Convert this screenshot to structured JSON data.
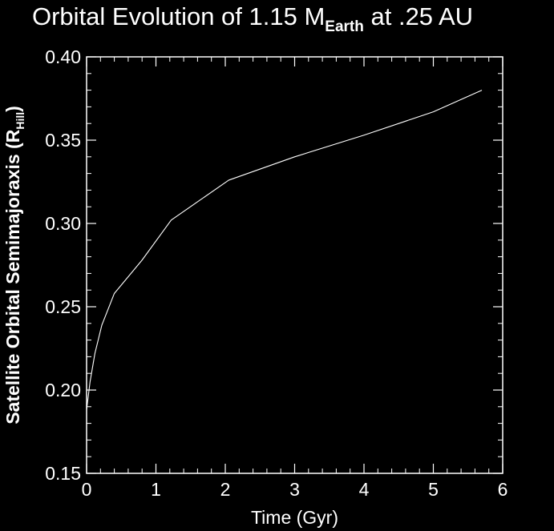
{
  "chart_data": {
    "type": "line",
    "title": {
      "main": "Orbital Evolution of 1.15 M",
      "subscript": "Earth",
      "suffix": " at .25 AU"
    },
    "xlabel": "Time (Gyr)",
    "ylabel": {
      "main": "Satellite Orbital Semimajoraxis (R",
      "subscript": "Hill",
      "suffix": ")"
    },
    "xlim": [
      0,
      6
    ],
    "ylim": [
      0.15,
      0.4
    ],
    "xticks": [
      0,
      1,
      2,
      3,
      4,
      5,
      6
    ],
    "xtick_labels": [
      "0",
      "1",
      "2",
      "3",
      "4",
      "5",
      "6"
    ],
    "yticks": [
      0.15,
      0.2,
      0.25,
      0.3,
      0.35,
      0.4
    ],
    "ytick_labels": [
      "0.15",
      "0.20",
      "0.25",
      "0.30",
      "0.35",
      "0.40"
    ],
    "grid": false,
    "background_color": "#000000",
    "foreground_color": "#ffffff",
    "series": [
      {
        "x": [
          0.0,
          0.05,
          0.12,
          0.22,
          0.4,
          0.8,
          1.22,
          1.6,
          2.05,
          3.0,
          4.0,
          5.0,
          5.7
        ],
        "y": [
          0.188,
          0.205,
          0.222,
          0.239,
          0.258,
          0.278,
          0.302,
          0.313,
          0.326,
          0.34,
          0.353,
          0.367,
          0.38
        ],
        "color": "#ffffff"
      }
    ]
  }
}
